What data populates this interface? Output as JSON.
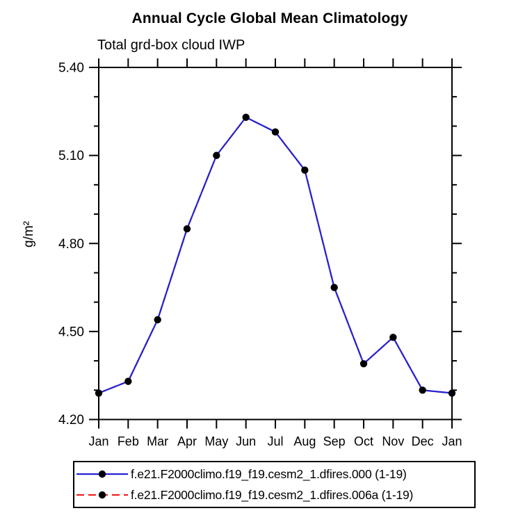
{
  "header": {
    "title": "Annual Cycle Global Mean Climatology",
    "subtitle": "Total grd-box cloud IWP"
  },
  "chart_data": {
    "type": "line",
    "title": "Annual Cycle Global Mean Climatology",
    "subtitle": "Total grd-box cloud IWP",
    "xlabel": "",
    "ylabel": "g/m²",
    "categories": [
      "Jan",
      "Feb",
      "Mar",
      "Apr",
      "May",
      "Jun",
      "Jul",
      "Aug",
      "Sep",
      "Oct",
      "Nov",
      "Dec",
      "Jan"
    ],
    "series": [
      {
        "name": "f.e21.F2000climo.f19_f19.cesm2_1.dfires.000 (1-19)",
        "color": "#2222d2",
        "line_style": "solid",
        "marker": "filled-circle",
        "marker_color": "#000000",
        "values": [
          4.29,
          4.33,
          4.54,
          4.85,
          5.1,
          5.23,
          5.18,
          5.05,
          4.65,
          4.39,
          4.48,
          4.3,
          4.29
        ]
      },
      {
        "name": "f.e21.F2000climo.f19_f19.cesm2_1.dfires.006a (1-19)",
        "color": "#ee2222",
        "line_style": "dashed",
        "marker": "filled-circle",
        "marker_color": "#000000",
        "values": [
          4.29,
          4.33,
          4.54,
          4.85,
          5.1,
          5.23,
          5.18,
          5.05,
          4.65,
          4.39,
          4.48,
          4.3,
          4.29
        ]
      }
    ],
    "ylim": [
      4.2,
      5.4
    ],
    "y_major_ticks": [
      4.2,
      4.5,
      4.8,
      5.1,
      5.4
    ],
    "y_tick_labels": [
      "4.20",
      "4.50",
      "4.80",
      "5.10",
      "5.40"
    ],
    "y_minor_step": 0.1,
    "grid": false,
    "legend_position": "bottom",
    "frame_color": "#000000"
  }
}
